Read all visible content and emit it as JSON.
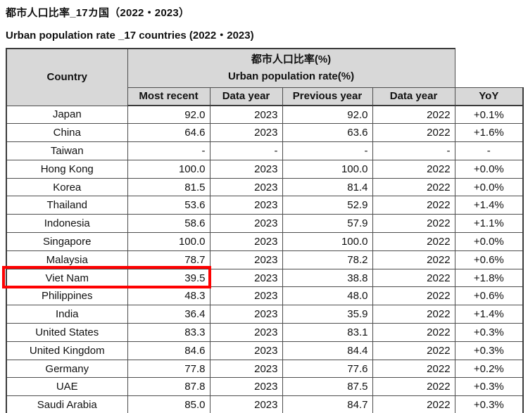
{
  "titles": {
    "japanese": "都市人口比率_17カ国（2022・2023）",
    "english": "Urban population rate _17 countries (2022・2023)"
  },
  "table": {
    "header": {
      "country": "Country",
      "group_jp": "都市人口比率(%)",
      "group_en": "Urban population rate(%)",
      "sub": [
        "Most recent",
        "Data year",
        "Previous year",
        "Data year",
        "YoY"
      ]
    },
    "rows": [
      {
        "cells": [
          "Japan",
          "92.0",
          "2023",
          "92.0",
          "2022",
          "+0.1%"
        ]
      },
      {
        "cells": [
          "China",
          "64.6",
          "2023",
          "63.6",
          "2022",
          "+1.6%"
        ]
      },
      {
        "cells": [
          "Taiwan",
          "-",
          "-",
          "-",
          "-",
          "-"
        ]
      },
      {
        "cells": [
          "Hong Kong",
          "100.0",
          "2023",
          "100.0",
          "2022",
          "+0.0%"
        ]
      },
      {
        "cells": [
          "Korea",
          "81.5",
          "2023",
          "81.4",
          "2022",
          "+0.0%"
        ]
      },
      {
        "cells": [
          "Thailand",
          "53.6",
          "2023",
          "52.9",
          "2022",
          "+1.4%"
        ]
      },
      {
        "cells": [
          "Indonesia",
          "58.6",
          "2023",
          "57.9",
          "2022",
          "+1.1%"
        ]
      },
      {
        "cells": [
          "Singapore",
          "100.0",
          "2023",
          "100.0",
          "2022",
          "+0.0%"
        ]
      },
      {
        "cells": [
          "Malaysia",
          "78.7",
          "2023",
          "78.2",
          "2022",
          "+0.6%"
        ]
      },
      {
        "cells": [
          "Viet Nam",
          "39.5",
          "2023",
          "38.8",
          "2022",
          "+1.8%"
        ]
      },
      {
        "cells": [
          "Philippines",
          "48.3",
          "2023",
          "48.0",
          "2022",
          "+0.6%"
        ]
      },
      {
        "cells": [
          "India",
          "36.4",
          "2023",
          "35.9",
          "2022",
          "+1.4%"
        ]
      },
      {
        "cells": [
          "United States",
          "83.3",
          "2023",
          "83.1",
          "2022",
          "+0.3%"
        ]
      },
      {
        "cells": [
          "United Kingdom",
          "84.6",
          "2023",
          "84.4",
          "2022",
          "+0.3%"
        ]
      },
      {
        "cells": [
          "Germany",
          "77.8",
          "2023",
          "77.6",
          "2022",
          "+0.2%"
        ]
      },
      {
        "cells": [
          "UAE",
          "87.8",
          "2023",
          "87.5",
          "2022",
          "+0.3%"
        ]
      },
      {
        "cells": [
          "Saudi Arabia",
          "85.0",
          "2023",
          "84.7",
          "2022",
          "+0.3%"
        ]
      }
    ],
    "highlighted_country": "Viet Nam",
    "highlight_row_index": 9,
    "highlight_column_span": 2
  },
  "colors": {
    "header_bg": "#d8d8d8",
    "grid_border": "#4d4d4d",
    "outer_border": "#3b3b3b",
    "highlight_red": "#fe0101"
  }
}
